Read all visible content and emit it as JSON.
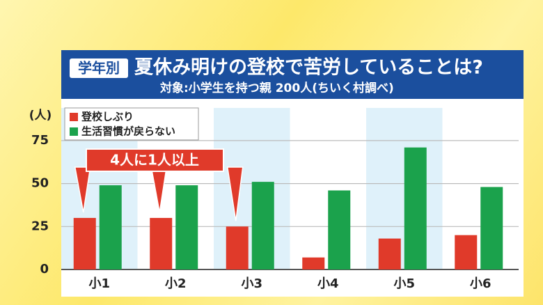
{
  "chart_data": {
    "type": "bar",
    "badge": "学年別",
    "title": "夏休み明けの登校で苦労していることは?",
    "subtitle": "対象:小学生を持つ親 200人(ちいく村調べ)",
    "y_label": "(人)",
    "annotation": "4人に1人以上",
    "categories": [
      "小1",
      "小2",
      "小3",
      "小4",
      "小5",
      "小6"
    ],
    "series": [
      {
        "name": "登校しぶり",
        "color": "#e03a2a",
        "values": [
          30,
          30,
          25,
          7,
          18,
          20
        ]
      },
      {
        "name": "生活習慣が戻らない",
        "color": "#1ba24c",
        "values": [
          49,
          49,
          51,
          46,
          71,
          48
        ]
      }
    ],
    "ylim": [
      0,
      94
    ],
    "yticks": [
      0,
      25,
      50,
      75
    ],
    "grid": true
  }
}
